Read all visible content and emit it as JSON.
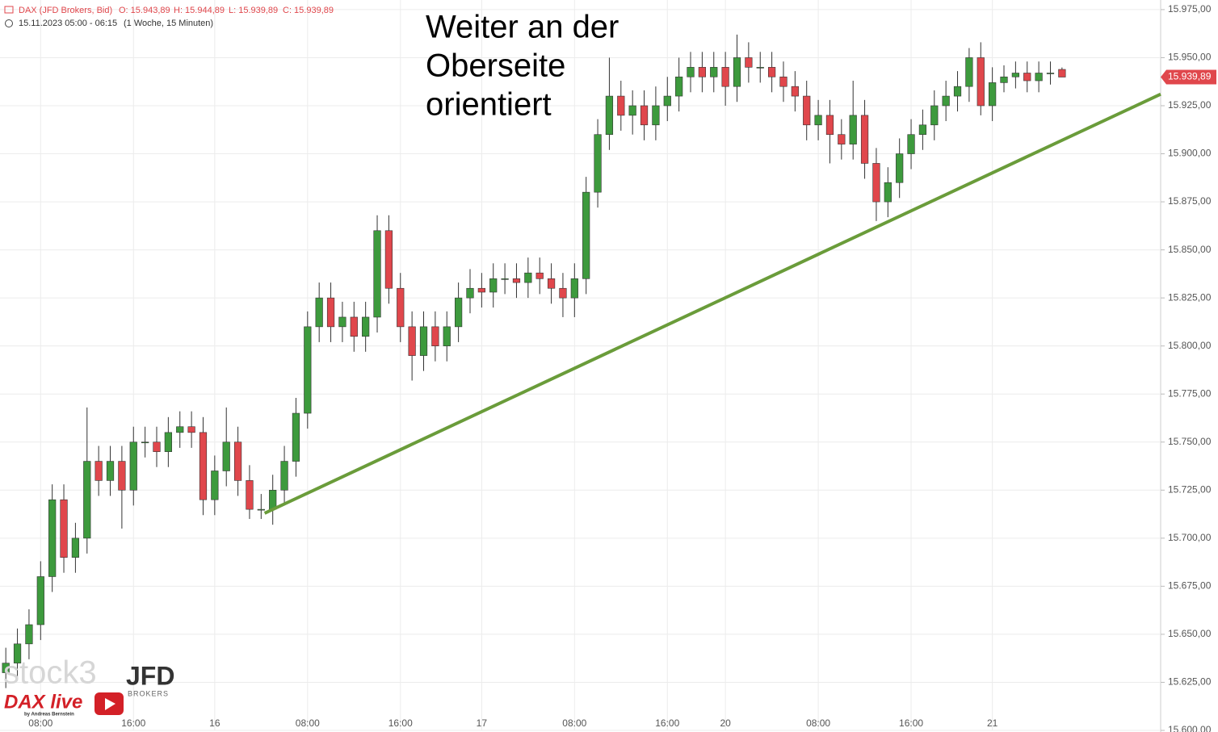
{
  "header": {
    "instrument": "DAX (JFD Brokers, Bid)",
    "ohlc": [
      "O: 15.943,89",
      "H: 15.944,89",
      "L: 15.939,89",
      "C: 15.939,89"
    ],
    "period": "15.11.2023 05:00 - 06:15",
    "interval": "(1 Woche, 15 Minuten)"
  },
  "watermark": {
    "brand": "stock3",
    "broker": "JFD",
    "broker_sub": "BROKERS",
    "show": "DAX live",
    "author": "by Andreas Bernstein"
  },
  "chart_data": {
    "type": "candlestick",
    "annotation": [
      "Weiter an der",
      "Oberseite",
      "orientiert"
    ],
    "up_color": "#3d9a3d",
    "down_color": "#e0474c",
    "x": [
      0,
      1,
      2,
      3,
      4,
      5,
      6,
      7,
      8,
      9,
      10,
      11,
      12,
      13,
      14,
      15,
      16,
      17,
      18,
      19,
      20,
      21,
      22,
      23,
      24,
      25,
      26,
      27,
      28,
      29,
      30,
      31,
      32,
      33,
      34,
      35,
      36,
      37,
      38,
      39,
      40,
      41,
      42,
      43,
      44,
      45,
      46,
      47,
      48,
      49,
      50,
      51,
      52,
      53,
      54,
      55,
      56,
      57,
      58,
      59,
      60,
      61,
      62,
      63,
      64,
      65,
      66,
      67,
      68,
      69,
      70,
      71,
      72,
      73,
      74,
      75,
      76,
      77,
      78,
      79,
      80,
      81,
      82,
      83,
      84,
      85,
      86,
      87,
      88,
      89,
      90,
      91
    ],
    "open": [
      15630,
      15635,
      15645,
      15655,
      15680,
      15720,
      15690,
      15700,
      15740,
      15730,
      15740,
      15725,
      15750,
      15750,
      15745,
      15755,
      15758,
      15755,
      15720,
      15735,
      15750,
      15730,
      15715,
      15715,
      15725,
      15740,
      15765,
      15810,
      15825,
      15810,
      15815,
      15805,
      15815,
      15860,
      15830,
      15810,
      15795,
      15810,
      15800,
      15810,
      15825,
      15830,
      15828,
      15835,
      15835,
      15833,
      15838,
      15835,
      15830,
      15825,
      15835,
      15880,
      15910,
      15930,
      15920,
      15925,
      15915,
      15925,
      15930,
      15940,
      15945,
      15940,
      15945,
      15935,
      15950,
      15945,
      15945,
      15940,
      15935,
      15930,
      15915,
      15920,
      15910,
      15905,
      15920,
      15895,
      15875,
      15885,
      15900,
      15910,
      15915,
      15925,
      15930,
      15935,
      15950,
      15925,
      15937,
      15940,
      15942,
      15938,
      15942,
      15943.89
    ],
    "high": [
      15643,
      15653,
      15663,
      15688,
      15728,
      15728,
      15708,
      15768,
      15748,
      15748,
      15748,
      15758,
      15758,
      15758,
      15763,
      15766,
      15766,
      15763,
      15743,
      15768,
      15758,
      15738,
      15723,
      15733,
      15748,
      15773,
      15818,
      15833,
      15833,
      15823,
      15823,
      15823,
      15868,
      15868,
      15838,
      15818,
      15818,
      15818,
      15818,
      15833,
      15840,
      15838,
      15843,
      15843,
      15843,
      15846,
      15846,
      15843,
      15838,
      15843,
      15888,
      15918,
      15950,
      15938,
      15933,
      15933,
      15935,
      15940,
      15950,
      15953,
      15953,
      15953,
      15953,
      15962,
      15958,
      15953,
      15953,
      15948,
      15943,
      15938,
      15928,
      15928,
      15918,
      15938,
      15928,
      15903,
      15893,
      15908,
      15918,
      15923,
      15933,
      15938,
      15943,
      15955,
      15958,
      15945,
      15946,
      15948,
      15948,
      15948,
      15948,
      15944.89
    ],
    "low": [
      15622,
      15627,
      15637,
      15647,
      15672,
      15682,
      15682,
      15692,
      15722,
      15722,
      15705,
      15717,
      15742,
      15737,
      15737,
      15747,
      15747,
      15712,
      15712,
      15727,
      15722,
      15710,
      15710,
      15707,
      15717,
      15732,
      15757,
      15802,
      15802,
      15802,
      15797,
      15797,
      15807,
      15822,
      15802,
      15782,
      15787,
      15792,
      15792,
      15802,
      15817,
      15820,
      15820,
      15827,
      15825,
      15825,
      15827,
      15822,
      15815,
      15815,
      15827,
      15872,
      15902,
      15912,
      15910,
      15907,
      15907,
      15917,
      15922,
      15932,
      15932,
      15932,
      15925,
      15927,
      15937,
      15937,
      15932,
      15927,
      15922,
      15907,
      15907,
      15895,
      15897,
      15897,
      15887,
      15865,
      15867,
      15877,
      15892,
      15902,
      15907,
      15917,
      15922,
      15927,
      15920,
      15917,
      15932,
      15934,
      15932,
      15932,
      15936,
      15939.89
    ],
    "close": [
      15635,
      15645,
      15655,
      15680,
      15720,
      15690,
      15700,
      15740,
      15730,
      15740,
      15725,
      15750,
      15750,
      15745,
      15755,
      15758,
      15755,
      15720,
      15735,
      15750,
      15730,
      15715,
      15715,
      15725,
      15740,
      15765,
      15810,
      15825,
      15810,
      15815,
      15805,
      15815,
      15860,
      15830,
      15810,
      15795,
      15810,
      15800,
      15810,
      15825,
      15830,
      15828,
      15835,
      15835,
      15833,
      15838,
      15835,
      15830,
      15825,
      15835,
      15880,
      15910,
      15930,
      15920,
      15925,
      15915,
      15925,
      15930,
      15940,
      15945,
      15940,
      15945,
      15935,
      15950,
      15945,
      15945,
      15940,
      15935,
      15930,
      15915,
      15920,
      15910,
      15905,
      15920,
      15895,
      15875,
      15885,
      15900,
      15910,
      15915,
      15925,
      15930,
      15935,
      15950,
      15925,
      15937,
      15940,
      15942,
      15938,
      15942,
      15942,
      15939.89
    ],
    "trendline": {
      "x": [
        22.3,
        99.5
      ],
      "values": [
        15713,
        15931
      ],
      "color": "#6a9c3a"
    },
    "last_price": {
      "value": 15939.89,
      "label": "15.939,89"
    },
    "xlim": [
      -0.5,
      99.5
    ],
    "xticks": [
      {
        "value": 3,
        "label": "08:00"
      },
      {
        "value": 11,
        "label": "16:00"
      },
      {
        "value": 18,
        "label": "16"
      },
      {
        "value": 26,
        "label": "08:00"
      },
      {
        "value": 34,
        "label": "16:00"
      },
      {
        "value": 41,
        "label": "17"
      },
      {
        "value": 49,
        "label": "08:00"
      },
      {
        "value": 57,
        "label": "16:00"
      },
      {
        "value": 62,
        "label": "20"
      },
      {
        "value": 70,
        "label": "08:00"
      },
      {
        "value": 78,
        "label": "16:00"
      },
      {
        "value": 85,
        "label": "21"
      }
    ],
    "ylim": [
      15600,
      15980
    ],
    "yticks": [
      {
        "value": 15600,
        "label": "15.600,00"
      },
      {
        "value": 15625,
        "label": "15.625,00"
      },
      {
        "value": 15650,
        "label": "15.650,00"
      },
      {
        "value": 15675,
        "label": "15.675,00"
      },
      {
        "value": 15700,
        "label": "15.700,00"
      },
      {
        "value": 15725,
        "label": "15.725,00"
      },
      {
        "value": 15750,
        "label": "15.750,00"
      },
      {
        "value": 15775,
        "label": "15.775,00"
      },
      {
        "value": 15800,
        "label": "15.800,00"
      },
      {
        "value": 15825,
        "label": "15.825,00"
      },
      {
        "value": 15850,
        "label": "15.850,00"
      },
      {
        "value": 15875,
        "label": "15.875,00"
      },
      {
        "value": 15900,
        "label": "15.900,00"
      },
      {
        "value": 15925,
        "label": "15.925,00"
      },
      {
        "value": 15950,
        "label": "15.950,00"
      },
      {
        "value": 15975,
        "label": "15.975,00"
      }
    ],
    "grid": true
  }
}
